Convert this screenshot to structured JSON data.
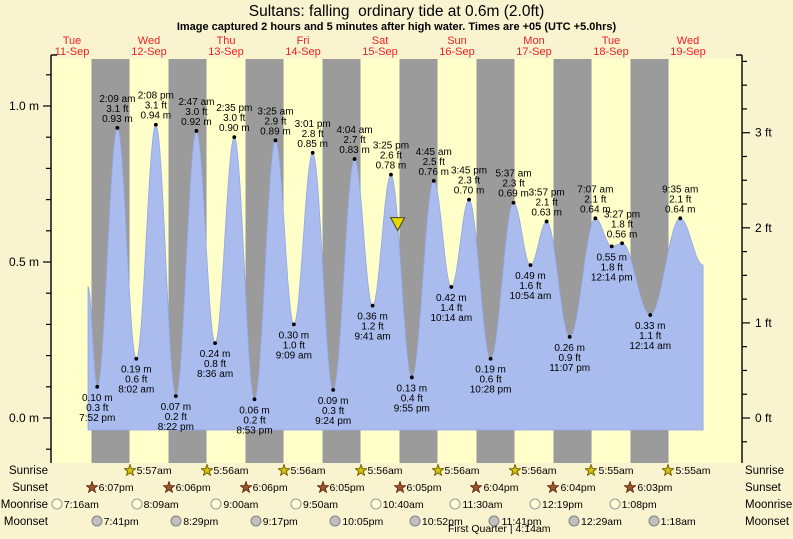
{
  "header": {
    "title": "Sultans: falling  ordinary tide at 0.6m (2.0ft)",
    "subtitle": "Image captured 2 hours and 5 minutes after high water. Times are +05 (UTC +5.0hrs)"
  },
  "days": [
    {
      "dow": "Tue",
      "date": "11-Sep"
    },
    {
      "dow": "Wed",
      "date": "12-Sep"
    },
    {
      "dow": "Thu",
      "date": "13-Sep"
    },
    {
      "dow": "Fri",
      "date": "14-Sep"
    },
    {
      "dow": "Sat",
      "date": "15-Sep"
    },
    {
      "dow": "Sun",
      "date": "16-Sep"
    },
    {
      "dow": "Mon",
      "date": "17-Sep"
    },
    {
      "dow": "Tue",
      "date": "18-Sep"
    },
    {
      "dow": "Wed",
      "date": "19-Sep"
    }
  ],
  "chart_data": {
    "type": "area",
    "title": "Sultans: falling ordinary tide at 0.6m (2.0ft)",
    "x_days": [
      "11-Sep",
      "12-Sep",
      "13-Sep",
      "14-Sep",
      "15-Sep",
      "16-Sep",
      "17-Sep",
      "18-Sep",
      "19-Sep"
    ],
    "axes": {
      "left": {
        "unit": "m",
        "major": [
          0,
          0.5,
          1.0
        ],
        "minor_step": 0.1,
        "labels": [
          "0.0 m",
          "0.5 m",
          "1.0 m"
        ]
      },
      "right": {
        "unit": "ft",
        "major": [
          0,
          1,
          2,
          3
        ],
        "minor_step": 0.25,
        "labels": [
          "0 ft",
          "1 ft",
          "2 ft",
          "3 ft"
        ],
        "ft_to_m": 0.3048
      }
    },
    "night_shading": {
      "sunset_hour": 18.08,
      "sunrise_hour": 5.93,
      "nights": 8
    },
    "tide_events": [
      {
        "kind": "low",
        "day": 0,
        "hour": 19.87,
        "time": "7:52 pm",
        "ft": 0.3,
        "m": 0.1
      },
      {
        "kind": "high",
        "day": 1,
        "hour": 2.15,
        "time": "2:09 am",
        "ft": 3.1,
        "m": 0.93
      },
      {
        "kind": "low",
        "day": 1,
        "hour": 8.03,
        "time": "8:02 am",
        "ft": 0.6,
        "m": 0.19
      },
      {
        "kind": "high",
        "day": 1,
        "hour": 14.13,
        "time": "2:08 pm",
        "ft": 3.1,
        "m": 0.94
      },
      {
        "kind": "low",
        "day": 1,
        "hour": 20.37,
        "time": "8:22 pm",
        "ft": 0.2,
        "m": 0.07
      },
      {
        "kind": "high",
        "day": 2,
        "hour": 2.78,
        "time": "2:47 am",
        "ft": 3.0,
        "m": 0.92
      },
      {
        "kind": "low",
        "day": 2,
        "hour": 8.6,
        "time": "8:36 am",
        "ft": 0.8,
        "m": 0.24
      },
      {
        "kind": "high",
        "day": 2,
        "hour": 14.58,
        "time": "2:35 pm",
        "ft": 3.0,
        "m": 0.9
      },
      {
        "kind": "low",
        "day": 2,
        "hour": 20.88,
        "time": "8:53 pm",
        "ft": 0.2,
        "m": 0.06
      },
      {
        "kind": "high",
        "day": 3,
        "hour": 3.42,
        "time": "3:25 am",
        "ft": 2.9,
        "m": 0.89
      },
      {
        "kind": "low",
        "day": 3,
        "hour": 9.15,
        "time": "9:09 am",
        "ft": 1.0,
        "m": 0.3
      },
      {
        "kind": "high",
        "day": 3,
        "hour": 15.02,
        "time": "3:01 pm",
        "ft": 2.8,
        "m": 0.85
      },
      {
        "kind": "low",
        "day": 3,
        "hour": 21.4,
        "time": "9:24 pm",
        "ft": 0.3,
        "m": 0.09
      },
      {
        "kind": "high",
        "day": 4,
        "hour": 4.07,
        "time": "4:04 am",
        "ft": 2.7,
        "m": 0.83
      },
      {
        "kind": "low",
        "day": 4,
        "hour": 9.68,
        "time": "9:41 am",
        "ft": 1.2,
        "m": 0.36
      },
      {
        "kind": "high",
        "day": 4,
        "hour": 15.42,
        "time": "3:25 pm",
        "ft": 2.6,
        "m": 0.78
      },
      {
        "kind": "low",
        "day": 4,
        "hour": 21.92,
        "time": "9:55 pm",
        "ft": 0.4,
        "m": 0.13
      },
      {
        "kind": "high",
        "day": 5,
        "hour": 4.75,
        "time": "4:45 am",
        "ft": 2.5,
        "m": 0.76
      },
      {
        "kind": "low",
        "day": 5,
        "hour": 10.23,
        "time": "10:14 am",
        "ft": 1.4,
        "m": 0.42
      },
      {
        "kind": "high",
        "day": 5,
        "hour": 15.75,
        "time": "3:45 pm",
        "ft": 2.3,
        "m": 0.7
      },
      {
        "kind": "low",
        "day": 5,
        "hour": 22.47,
        "time": "10:28 pm",
        "ft": 0.6,
        "m": 0.19
      },
      {
        "kind": "high",
        "day": 6,
        "hour": 5.62,
        "time": "5:37 am",
        "ft": 2.3,
        "m": 0.69
      },
      {
        "kind": "low",
        "day": 6,
        "hour": 10.9,
        "time": "10:54 am",
        "ft": 1.6,
        "m": 0.49
      },
      {
        "kind": "high",
        "day": 6,
        "hour": 15.95,
        "time": "3:57 pm",
        "ft": 2.1,
        "m": 0.63
      },
      {
        "kind": "low",
        "day": 6,
        "hour": 23.12,
        "time": "11:07 pm",
        "ft": 0.9,
        "m": 0.26
      },
      {
        "kind": "high",
        "day": 7,
        "hour": 7.12,
        "time": "7:07 am",
        "ft": 2.1,
        "m": 0.64
      },
      {
        "kind": "low",
        "day": 7,
        "hour": 12.23,
        "time": "12:14 pm",
        "ft": 1.8,
        "m": 0.55
      },
      {
        "kind": "high",
        "day": 7,
        "hour": 15.45,
        "time": "3:27 pm",
        "ft": 1.8,
        "m": 0.56
      },
      {
        "kind": "low",
        "day": 8,
        "hour": 0.23,
        "time": "12:14 am",
        "ft": 1.1,
        "m": 0.33
      },
      {
        "kind": "high",
        "day": 8,
        "hour": 9.58,
        "time": "9:35 am",
        "ft": 2.1,
        "m": 0.64
      }
    ],
    "curve_endpoints": {
      "start": {
        "day": 0,
        "hour": 17.0,
        "m": 0.42
      },
      "end": {
        "day": 8,
        "hour": 16.7,
        "m": 0.49
      }
    },
    "current_marker": {
      "day": 4,
      "hour": 17.5,
      "m": 0.62,
      "meaning": "current falling tide level 0.6m"
    }
  },
  "astro": {
    "rows": [
      {
        "name": "sunrise",
        "label": "Sunrise",
        "icon": "sunrise-star-icon",
        "entries": [
          {
            "day": 1,
            "hour": 5.95,
            "time": "5:57am"
          },
          {
            "day": 2,
            "hour": 5.93,
            "time": "5:56am"
          },
          {
            "day": 3,
            "hour": 5.93,
            "time": "5:56am"
          },
          {
            "day": 4,
            "hour": 5.93,
            "time": "5:56am"
          },
          {
            "day": 5,
            "hour": 5.93,
            "time": "5:56am"
          },
          {
            "day": 6,
            "hour": 5.93,
            "time": "5:56am"
          },
          {
            "day": 7,
            "hour": 5.92,
            "time": "5:55am"
          },
          {
            "day": 8,
            "hour": 5.92,
            "time": "5:55am"
          }
        ]
      },
      {
        "name": "sunset",
        "label": "Sunset",
        "icon": "sunset-star-icon",
        "entries": [
          {
            "day": 0,
            "hour": 18.12,
            "time": "6:07pm"
          },
          {
            "day": 1,
            "hour": 18.1,
            "time": "6:06pm"
          },
          {
            "day": 2,
            "hour": 18.1,
            "time": "6:06pm"
          },
          {
            "day": 3,
            "hour": 18.08,
            "time": "6:05pm"
          },
          {
            "day": 4,
            "hour": 18.08,
            "time": "6:05pm"
          },
          {
            "day": 5,
            "hour": 18.07,
            "time": "6:04pm"
          },
          {
            "day": 6,
            "hour": 18.07,
            "time": "6:04pm"
          },
          {
            "day": 7,
            "hour": 18.05,
            "time": "6:03pm"
          }
        ]
      },
      {
        "name": "moonrise",
        "label": "Moonrise",
        "icon": "moonrise-icon",
        "entries": [
          {
            "day": 0,
            "hour": 7.27,
            "time": "7:16am"
          },
          {
            "day": 1,
            "hour": 8.15,
            "time": "8:09am"
          },
          {
            "day": 2,
            "hour": 9.0,
            "time": "9:00am"
          },
          {
            "day": 3,
            "hour": 9.83,
            "time": "9:50am"
          },
          {
            "day": 4,
            "hour": 10.67,
            "time": "10:40am"
          },
          {
            "day": 5,
            "hour": 11.5,
            "time": "11:30am"
          },
          {
            "day": 6,
            "hour": 12.32,
            "time": "12:19pm"
          },
          {
            "day": 7,
            "hour": 13.13,
            "time": "1:08pm"
          }
        ]
      },
      {
        "name": "moonset",
        "label": "Moonset",
        "icon": "moonset-icon",
        "entries": [
          {
            "day": 0,
            "hour": 19.68,
            "time": "7:41pm"
          },
          {
            "day": 1,
            "hour": 20.48,
            "time": "8:29pm"
          },
          {
            "day": 2,
            "hour": 21.28,
            "time": "9:17pm"
          },
          {
            "day": 3,
            "hour": 22.08,
            "time": "10:05pm"
          },
          {
            "day": 4,
            "hour": 22.87,
            "time": "10:52pm"
          },
          {
            "day": 5,
            "hour": 23.68,
            "time": "11:41pm"
          },
          {
            "day": 7,
            "hour": 0.48,
            "time": "12:29am"
          },
          {
            "day": 8,
            "hour": 1.3,
            "time": "1:18am"
          }
        ]
      }
    ],
    "moon_phase": "First Quarter | 4:14am"
  },
  "colors": {
    "background": "#faf3d0",
    "day_band": "#ffffc9",
    "night_band": "#9b9b9b",
    "tide_fill": "#aabbee",
    "tide_edge": "#93a7e8",
    "date_label": "#ee2222",
    "marker_fill": "#e8d800",
    "marker_edge": "#555533",
    "sunrise_star": "#d4c400",
    "sunrise_star_edge": "#6b5900",
    "sunset_star": "#a0522d",
    "sunset_star_edge": "#5e2f15",
    "moonrise_fill": "#ffffd8",
    "moonrise_edge": "#999999",
    "moonset_fill": "#c0c0c0",
    "moonset_edge": "#808080",
    "axis": "#000000"
  }
}
